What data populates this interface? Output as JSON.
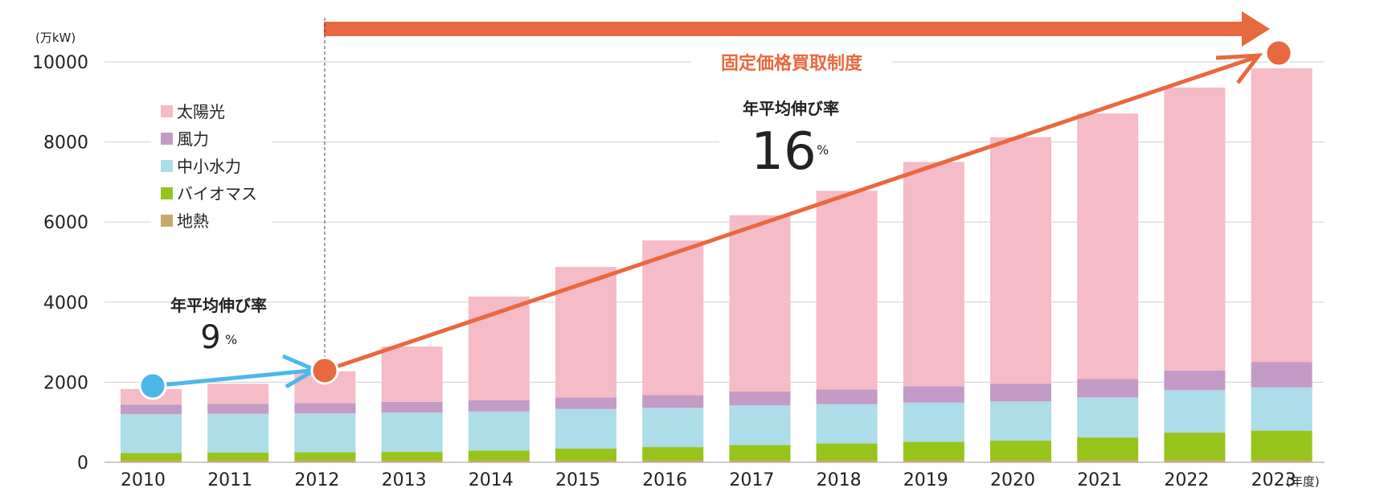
{
  "chart_data": {
    "type": "bar",
    "stacked": true,
    "y_unit": "(万kW)",
    "x_unit": "(年度)",
    "ylim": [
      0,
      10000
    ],
    "yticks": [
      "0",
      "2000",
      "4000",
      "6000",
      "8000",
      "10000"
    ],
    "grid": true,
    "legend_position": "left",
    "categories": [
      "2010",
      "2011",
      "2012",
      "2013",
      "2014",
      "2015",
      "2016",
      "2017",
      "2018",
      "2019",
      "2020",
      "2021",
      "2022",
      "2023"
    ],
    "series": [
      {
        "name": "地熱",
        "color": "#c9a96a",
        "values": [
          50,
          50,
          50,
          50,
          50,
          50,
          50,
          50,
          50,
          50,
          50,
          60,
          60,
          60
        ]
      },
      {
        "name": "バイオマス",
        "color": "#97c41a",
        "values": [
          180,
          190,
          200,
          210,
          240,
          290,
          330,
          380,
          420,
          460,
          490,
          560,
          680,
          730
        ]
      },
      {
        "name": "中小水力",
        "color": "#acdde9",
        "values": [
          970,
          970,
          970,
          980,
          980,
          990,
          980,
          990,
          980,
          980,
          980,
          1000,
          1060,
          1080
        ]
      },
      {
        "name": "風力",
        "color": "#c49ac6",
        "values": [
          240,
          250,
          260,
          270,
          280,
          290,
          320,
          350,
          370,
          410,
          440,
          460,
          490,
          630
        ]
      },
      {
        "name": "太陽光",
        "color": "#f5bbc6",
        "values": [
          390,
          500,
          790,
          1380,
          2590,
          3260,
          3860,
          4400,
          4960,
          5600,
          6160,
          6630,
          7070,
          7340
        ]
      }
    ],
    "annotations": {
      "fit_label": "固定価格買取制度",
      "growth_before": {
        "label": "年平均伸び率",
        "value": "9",
        "unit": "%"
      },
      "growth_after": {
        "label": "年平均伸び率",
        "value": "16",
        "unit": "%"
      }
    },
    "colors": {
      "fit_arrow": "#e8683f",
      "early_arrow": "#4db8e8",
      "grid": "#cfcfcf"
    }
  }
}
